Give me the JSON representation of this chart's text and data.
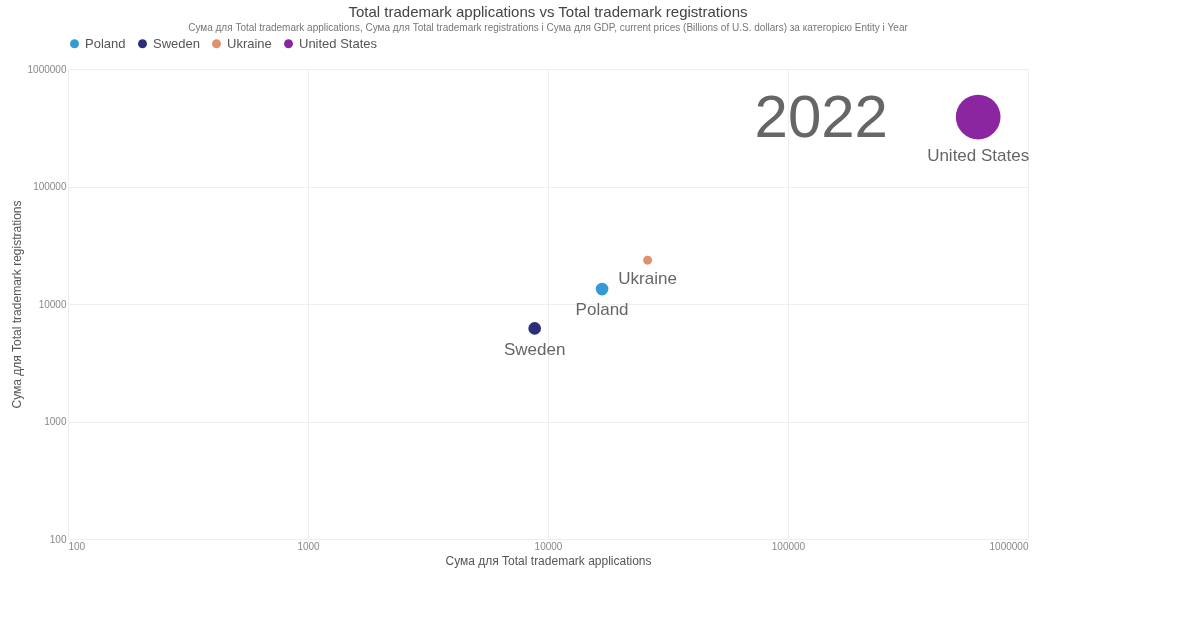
{
  "chart_data": {
    "type": "bubble",
    "title": "Total trademark applications vs Total trademark registrations",
    "subtitle": "Сума для Total trademark applications, Сума для Total trademark registrations і Сума для GDP, current prices (Billions of U.S. dollars) за категорією Entity і Year",
    "xlabel": "Сума для Total trademark applications",
    "ylabel": "Сума для Total trademark registrations",
    "log": "xy",
    "xlim": [
      100,
      1000000
    ],
    "xticks": [
      100,
      1000,
      10000,
      100000,
      1000000
    ],
    "ylim": [
      100,
      1000000
    ],
    "yticks": [
      100,
      1000,
      10000,
      100000,
      1000000
    ],
    "grid": true,
    "legend": "top",
    "marker": "circle",
    "annotations": [
      "2022"
    ],
    "series": [
      {
        "name": "Poland",
        "color": "#3599d4",
        "x": [
          16800
        ],
        "values": [
          13400
        ],
        "sizes": [
          0.08
        ]
      },
      {
        "name": "Sweden",
        "color": "#2b2f7a",
        "x": [
          8800
        ],
        "values": [
          6200
        ],
        "sizes": [
          0.08
        ]
      },
      {
        "name": "Ukraine",
        "color": "#e0906a",
        "x": [
          26000
        ],
        "values": [
          23600
        ],
        "sizes": [
          0.04
        ]
      },
      {
        "name": "United States",
        "color": "#8b26a0",
        "x": [
          620000
        ],
        "values": [
          390000
        ],
        "sizes": [
          1
        ]
      }
    ]
  }
}
